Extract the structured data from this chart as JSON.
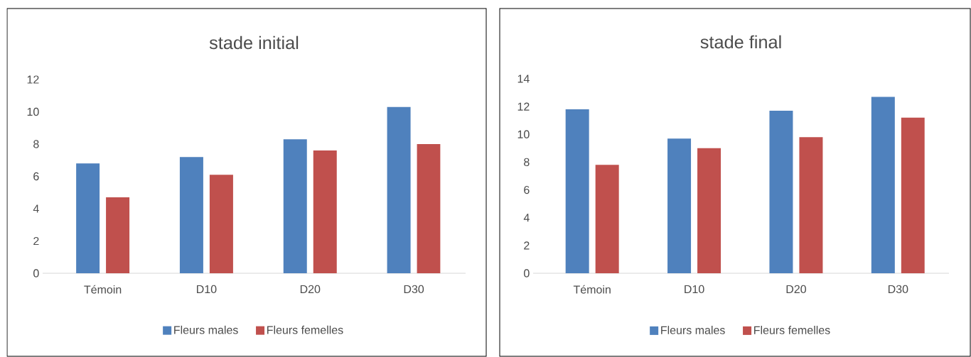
{
  "chart_data": [
    {
      "type": "bar",
      "title": "stade initial",
      "categories": [
        "Témoin",
        "D10",
        "D20",
        "D30"
      ],
      "series": [
        {
          "name": "Fleurs males",
          "color": "#4f81bd",
          "values": [
            6.8,
            7.2,
            8.3,
            10.3
          ]
        },
        {
          "name": "Fleurs femelles",
          "color": "#c0504d",
          "values": [
            4.7,
            6.1,
            7.6,
            8.0
          ]
        }
      ],
      "ylim": [
        0,
        12
      ],
      "yticks": [
        0,
        2,
        4,
        6,
        8,
        10,
        12
      ],
      "legend": "bottom"
    },
    {
      "type": "bar",
      "title": "stade final",
      "categories": [
        "Témoin",
        "D10",
        "D20",
        "D30"
      ],
      "series": [
        {
          "name": "Fleurs males",
          "color": "#4f81bd",
          "values": [
            11.8,
            9.7,
            11.7,
            12.7
          ]
        },
        {
          "name": "Fleurs femelles",
          "color": "#c0504d",
          "values": [
            7.8,
            9.0,
            9.8,
            11.2
          ]
        }
      ],
      "ylim": [
        0,
        14
      ],
      "yticks": [
        0,
        2,
        4,
        6,
        8,
        10,
        12,
        14
      ],
      "legend": "bottom"
    }
  ]
}
